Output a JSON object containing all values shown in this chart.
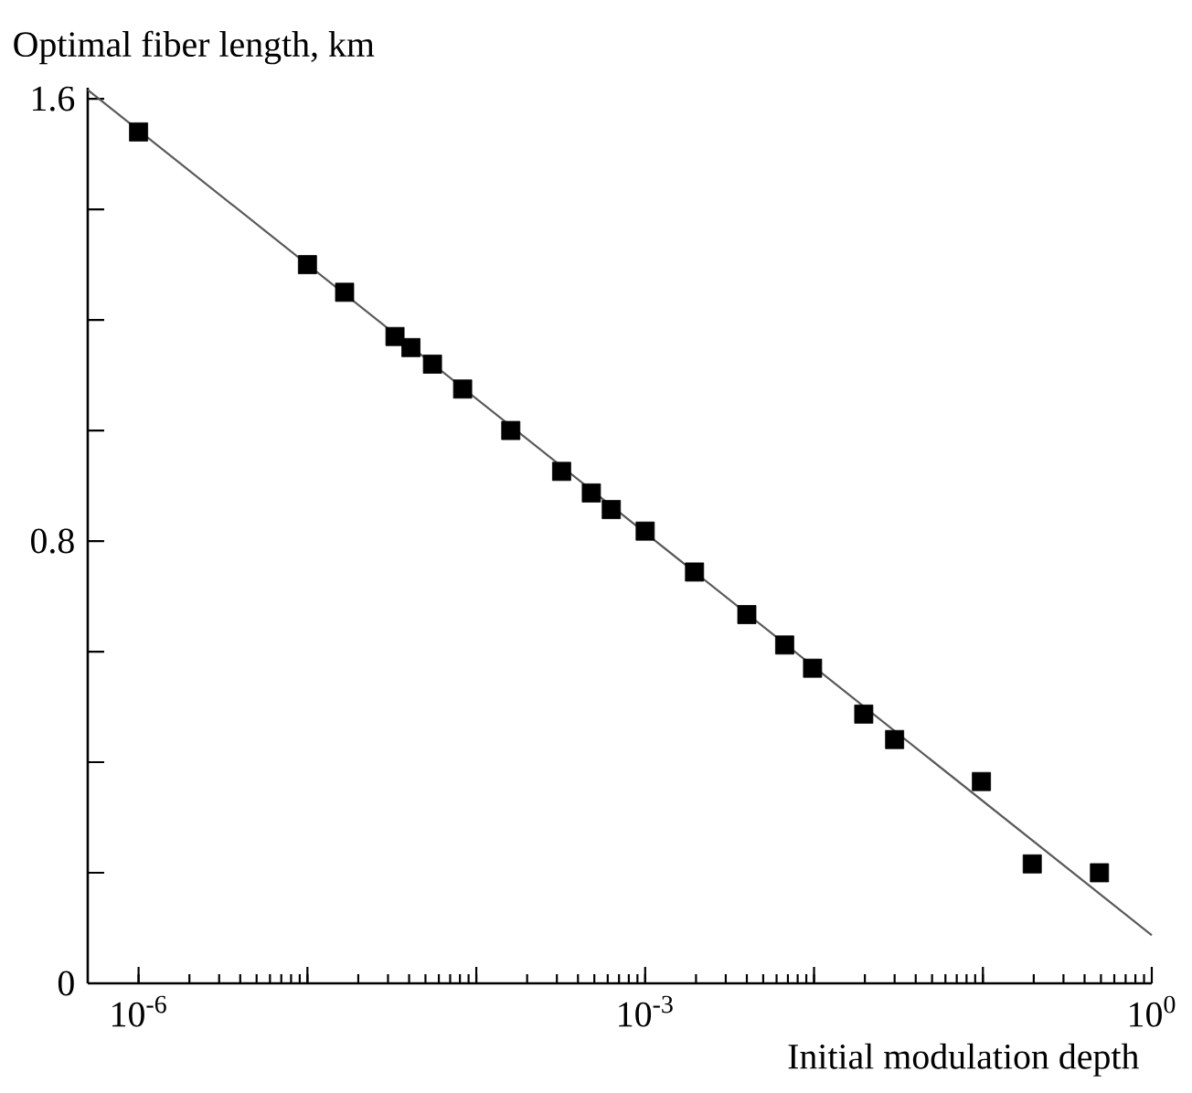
{
  "chart_data": {
    "type": "scatter",
    "xlabel": "Initial modulation depth",
    "ylabel": "Optimal fiber length, km",
    "log": "x",
    "grid": false,
    "marker": "square",
    "xlim": [
      5e-07,
      1
    ],
    "ylim": [
      0,
      1.62
    ],
    "xticks": [
      {
        "value": 1e-06,
        "label": "10$^{-6}$"
      },
      {
        "value": 1e-05,
        "label": null
      },
      {
        "value": 0.0001,
        "label": null
      },
      {
        "value": 0.001,
        "label": "10$^{-3}$"
      },
      {
        "value": 0.01,
        "label": null
      },
      {
        "value": 0.1,
        "label": null
      },
      {
        "value": 1,
        "label": "10$^{0}$"
      }
    ],
    "yticks": [
      0,
      {
        "value": 0.2,
        "label": null
      },
      {
        "value": 0.4,
        "label": null
      },
      {
        "value": 0.6,
        "label": null
      },
      0.8,
      {
        "value": 1.0,
        "label": null
      },
      {
        "value": 1.2,
        "label": null
      },
      {
        "value": 1.4,
        "label": null
      },
      1.6
    ],
    "series": [
      {
        "color": "#000000",
        "x": [
          1e-06,
          1e-05,
          1.66e-05,
          3.3e-05,
          4.1e-05,
          5.5e-05,
          8.3e-05,
          0.00016,
          0.00032,
          0.00048,
          0.00063,
          0.001,
          0.00196,
          0.004,
          0.0067,
          0.0098,
          0.0197,
          0.03,
          0.098,
          0.196,
          0.49
        ],
        "values": [
          1.54,
          1.3,
          1.25,
          1.17,
          1.15,
          1.12,
          1.075,
          1.0,
          0.926,
          0.887,
          0.857,
          0.818,
          0.744,
          0.667,
          0.612,
          0.57,
          0.487,
          0.441,
          0.365,
          0.216,
          0.2
        ]
      },
      {
        "type": "line",
        "color": "#595959",
        "marker": "none",
        "x": [
          5e-07,
          1
        ],
        "values": [
          1.616,
          0.087
        ]
      }
    ]
  }
}
